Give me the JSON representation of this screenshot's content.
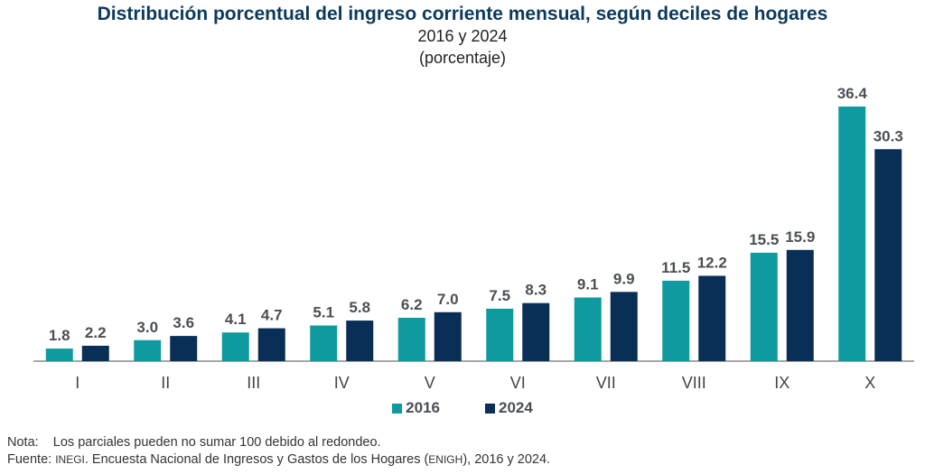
{
  "chart_data": {
    "type": "bar",
    "title": "Distribución porcentual del ingreso corriente mensual, según deciles de hogares",
    "subtitle": "2016 y 2024",
    "unit_label": "(porcentaje)",
    "xlabel": "",
    "ylabel": "",
    "ylim": [
      0,
      36.4
    ],
    "grid": false,
    "legend_position": "bottom-center",
    "categories": [
      "I",
      "II",
      "III",
      "IV",
      "V",
      "VI",
      "VII",
      "VIII",
      "IX",
      "X"
    ],
    "series": [
      {
        "name": "2016",
        "color": "#0e9a9f",
        "values": [
          1.8,
          3.0,
          4.1,
          5.1,
          6.2,
          7.5,
          9.1,
          11.5,
          15.5,
          36.4
        ]
      },
      {
        "name": "2024",
        "color": "#0a2f57",
        "values": [
          2.2,
          3.6,
          4.7,
          5.8,
          7.0,
          8.3,
          9.9,
          12.2,
          15.9,
          30.3
        ]
      }
    ]
  },
  "notes": {
    "nota_label": "Nota:",
    "nota_text": "Los parciales pueden no sumar 100 debido al redondeo.",
    "fuente_label": "Fuente:",
    "fuente_org": "INEGI",
    "fuente_text_1": ". Encuesta Nacional de Ingresos y Gastos de los Hogares (",
    "fuente_abbr": "ENIGH",
    "fuente_text_2": "), 2016 y 2024."
  }
}
